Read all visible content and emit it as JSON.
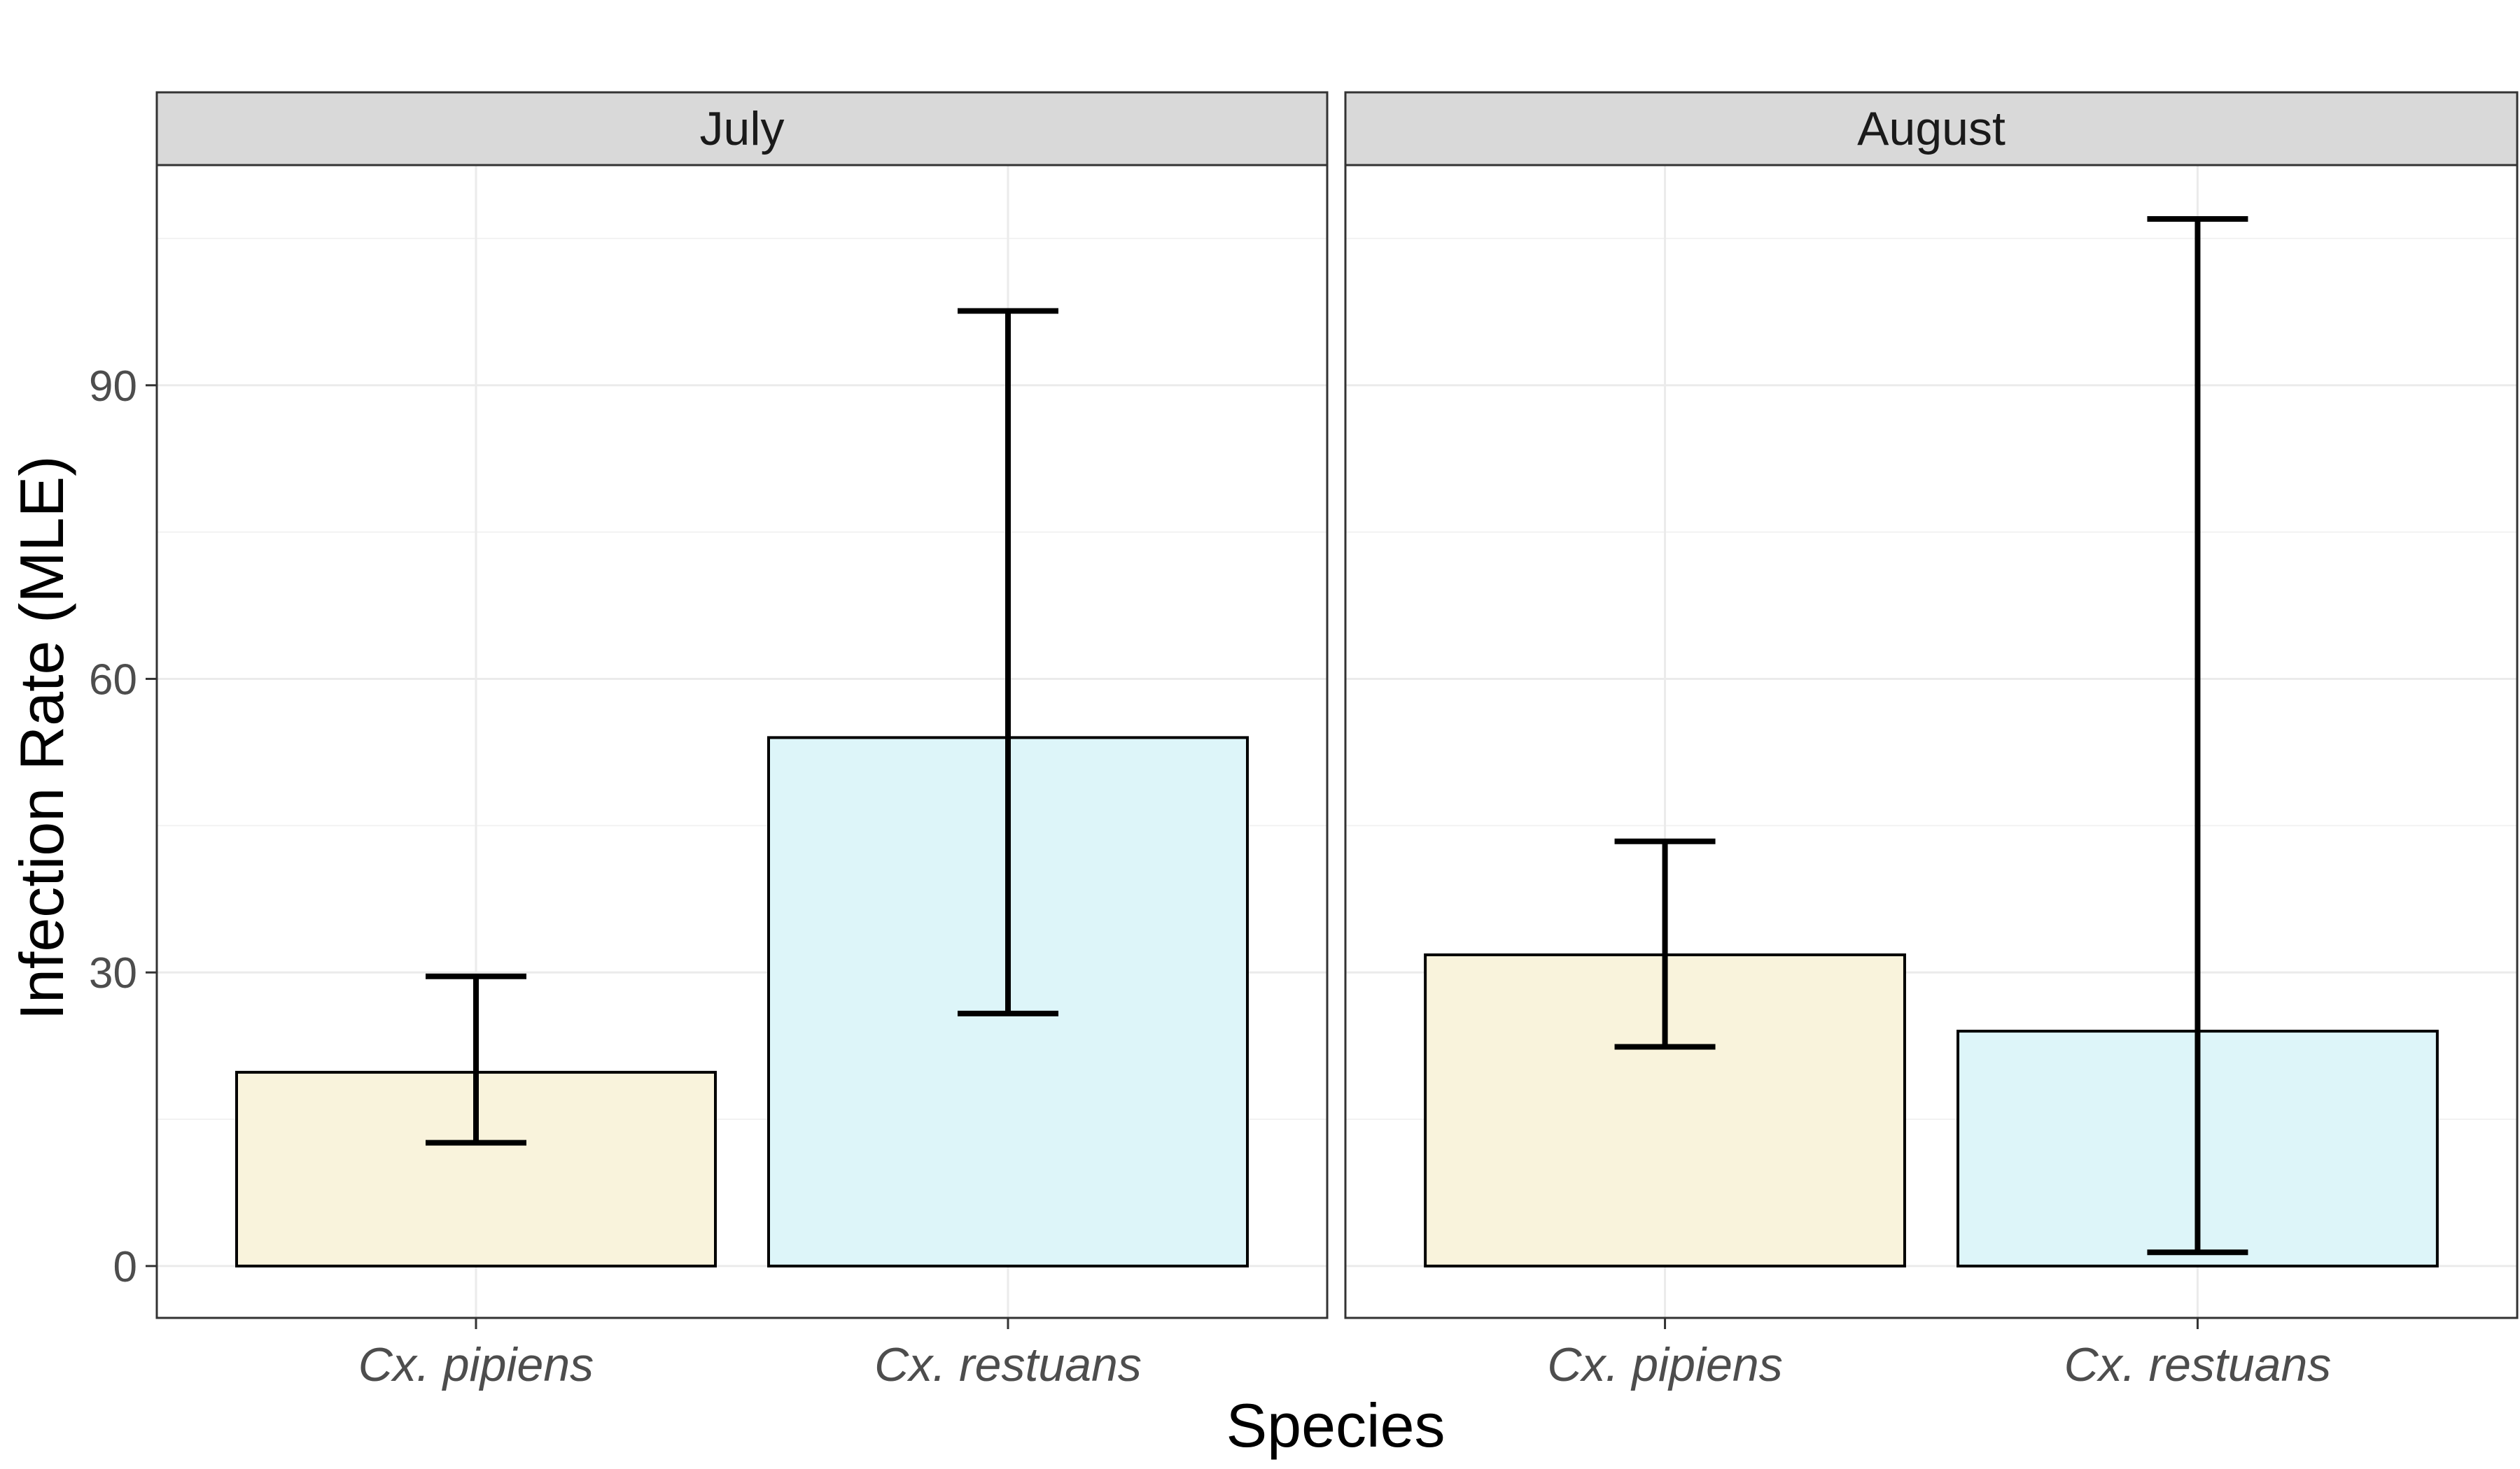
{
  "chart_data": {
    "type": "bar",
    "xlabel": "Species",
    "ylabel": "Infection Rate (MLE)",
    "ylim": [
      -5.3,
      112.5
    ],
    "yticks": [
      0,
      30,
      60,
      90
    ],
    "grid": true,
    "categories": [
      "Cx. pipiens",
      "Cx. restuans"
    ],
    "colors": {
      "Cx. pipiens": "#F9F3DC",
      "Cx. restuans": "#DDF5F9"
    },
    "panels": [
      {
        "name": "July",
        "values": [
          19.8,
          54.0
        ],
        "error_low": [
          12.6,
          25.8
        ],
        "error_high": [
          29.6,
          97.6
        ]
      },
      {
        "name": "August",
        "values": [
          31.8,
          24.0
        ],
        "error_low": [
          22.4,
          1.4
        ],
        "error_high": [
          43.4,
          107.0
        ]
      }
    ]
  }
}
